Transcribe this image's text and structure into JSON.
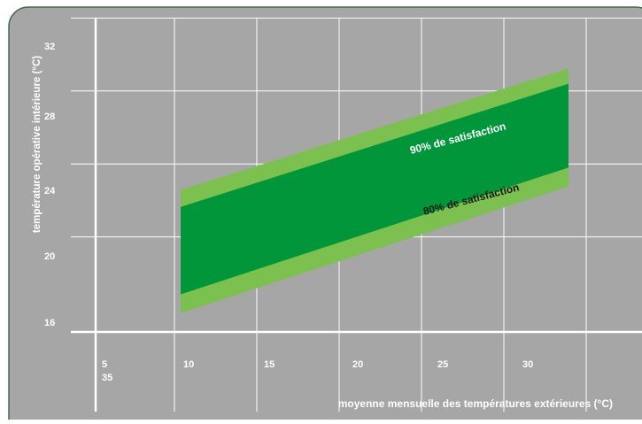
{
  "chart_data": {
    "type": "area",
    "title": "",
    "xlabel": "moyenne mensuelle des températures extérieures (°C)",
    "ylabel": "température opérative intérieure (°C)",
    "x_ticks": [
      "5",
      "10",
      "15",
      "20",
      "25",
      "30"
    ],
    "x_tick_extra": "35",
    "y_ticks": [
      "16",
      "20",
      "24",
      "28",
      "32"
    ],
    "xlim": [
      5,
      35
    ],
    "ylim": [
      16,
      32
    ],
    "grid": true,
    "series": [
      {
        "name": "80% de satisfaction",
        "x": [
          10,
          32.5
        ],
        "lower": [
          17.1,
          24.5
        ],
        "upper": [
          24.3,
          31.4
        ]
      },
      {
        "name": "90% de satisfaction",
        "x": [
          10,
          32.5
        ],
        "lower": [
          18.2,
          25.6
        ],
        "upper": [
          23.3,
          30.5
        ]
      }
    ],
    "colors": {
      "background": "#a6a6a6",
      "grid": "#ffffff",
      "band_80": "#7cc04f",
      "band_90": "#009639",
      "label_90": "#ffffff",
      "label_80": "#1a1a1a",
      "text": "#ffffff"
    }
  }
}
